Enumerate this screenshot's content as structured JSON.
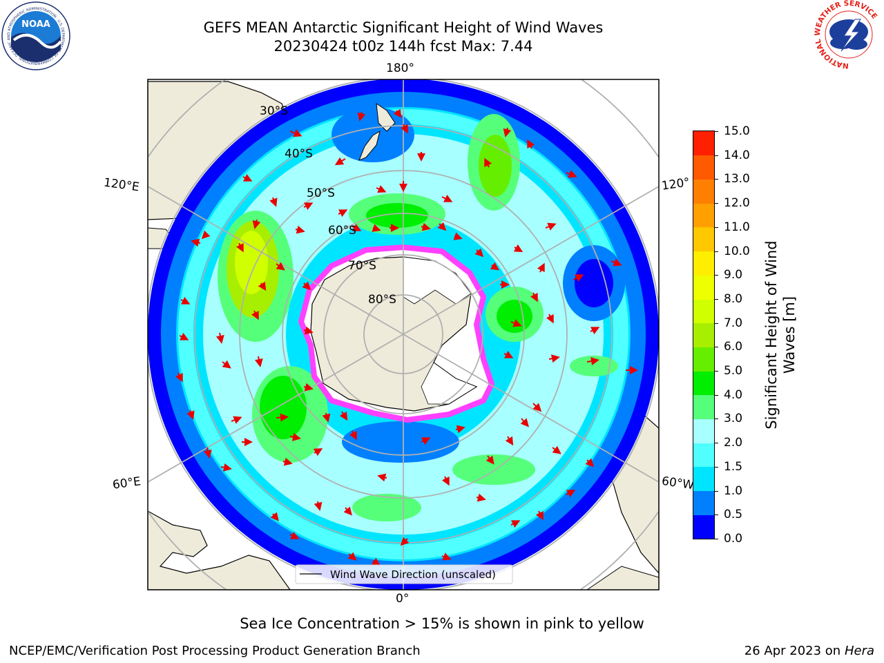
{
  "header": {
    "title_line1": "GEFS MEAN Antarctic Significant Height of Wind Waves",
    "title_line2": "20230424 t00z 144h fcst   Max: 7.44"
  },
  "logos": {
    "left": {
      "text": "NOAA",
      "ring_text": "NATIONAL OCEANIC AND ATMOSPHERIC ADMINISTRATION · U.S. DEPARTMENT OF COMMERCE"
    },
    "right": {
      "ring_text": "NATIONAL WEATHER SERVICE"
    }
  },
  "map": {
    "lon_labels": {
      "top": "180°",
      "bottom": "0°",
      "upper_left": "120°E",
      "upper_right": "120°",
      "lower_left": "60°E",
      "lower_right": "60°W"
    },
    "lat_labels": [
      "30°S",
      "40°S",
      "50°S",
      "60°S",
      "70°S",
      "80°S"
    ],
    "legend_label": "Wind Wave Direction (unscaled)",
    "colors": {
      "land": "#efebda",
      "ocean_low": "#0000ff",
      "ice_edge": "#ff40ff",
      "arrow": "#e80000"
    }
  },
  "colorbar": {
    "label": "Significant Height of Wind Waves [m]",
    "ticks": [
      "15.0",
      "14.0",
      "13.0",
      "12.0",
      "11.0",
      "10.0",
      "9.0",
      "8.0",
      "7.0",
      "6.0",
      "5.0",
      "4.0",
      "3.0",
      "2.0",
      "1.5",
      "1.0",
      "0.5",
      "0.0"
    ],
    "colors": [
      "#0000ff",
      "#0080ff",
      "#00e5ff",
      "#50ffff",
      "#a8ffff",
      "#55ff7a",
      "#00ee00",
      "#66ee00",
      "#a8ee00",
      "#d0ff00",
      "#eeff00",
      "#ffee00",
      "#ffc800",
      "#ffa000",
      "#ff8000",
      "#ff5a00",
      "#ff2000"
    ]
  },
  "caption": "Sea Ice Concentration > 15% is shown in pink to yellow",
  "footer": {
    "left": "NCEP/EMC/Verification Post Processing Product Generation Branch",
    "date": "26 Apr 2023 on",
    "machine": "Hera"
  }
}
